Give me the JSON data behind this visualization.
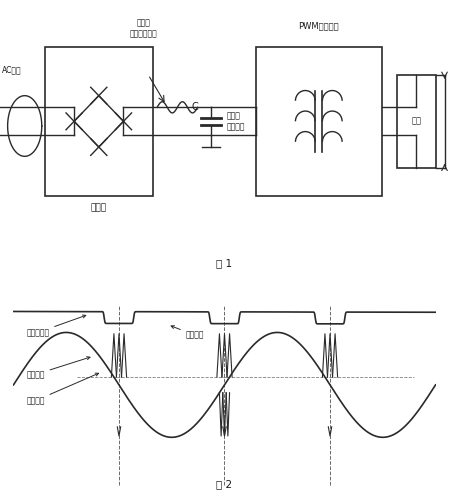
{
  "bg_color": "#ffffff",
  "title1": "图 1",
  "title2": "图 2",
  "label_ac": "AC输入",
  "label_rectifier": "整流器",
  "label_dc_cap": "大容量\n滤波电容",
  "label_C": "C",
  "label_pwm": "PWM开关电源",
  "label_load": "负载",
  "label_dc_after": "整流后\n电容上的直流",
  "label_waveform_drop": "波形下沿",
  "label_dc_rectified": "整流后直流",
  "label_peak_voltage": "峰路电压",
  "label_peak_current": "峰路电流",
  "line_color": "#2a2a2a",
  "text_color": "#1a1a1a"
}
